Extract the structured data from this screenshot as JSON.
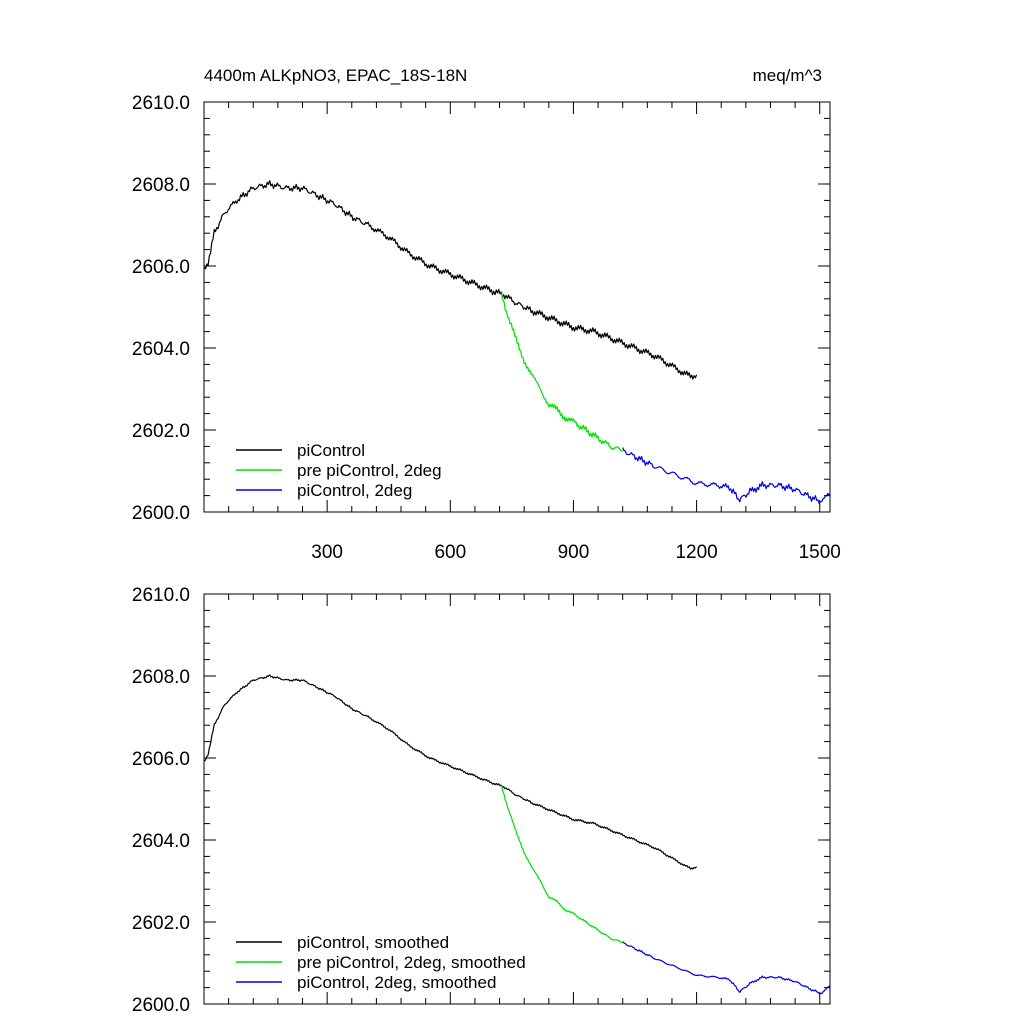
{
  "colors": {
    "piControl": "#000000",
    "pre_2deg": "#00e000",
    "piControl_2deg": "#0000e6"
  },
  "chart_data": [
    {
      "type": "line",
      "title": "4400m ALKpNO3, EPAC_18S-18N",
      "units": "meq/m^3",
      "xlim": [
        0,
        1525
      ],
      "ylim": [
        2600,
        2610
      ],
      "xticks": [
        300,
        600,
        900,
        1200,
        1500
      ],
      "xtick_labels": [
        "300",
        "600",
        "900",
        "1200",
        "1500"
      ],
      "yticks": [
        2600,
        2602,
        2604,
        2606,
        2608,
        2610
      ],
      "ytick_labels": [
        "2600.0",
        "2602.0",
        "2604.0",
        "2606.0",
        "2608.0",
        "2610.0"
      ],
      "legend": [
        "piControl",
        "pre piControl, 2deg",
        "piControl, 2deg"
      ],
      "series": [
        {
          "name": "piControl",
          "color_key": "piControl",
          "x": [
            1,
            10,
            25,
            50,
            80,
            120,
            160,
            200,
            240,
            280,
            320,
            360,
            400,
            450,
            500,
            550,
            600,
            650,
            700,
            730,
            760,
            800,
            850,
            900,
            950,
            1000,
            1050,
            1100,
            1150,
            1185,
            1200
          ],
          "y": [
            2605.9,
            2606.1,
            2606.8,
            2607.3,
            2607.6,
            2607.9,
            2608.0,
            2607.9,
            2607.9,
            2607.7,
            2607.5,
            2607.2,
            2607.0,
            2606.7,
            2606.3,
            2606.0,
            2605.8,
            2605.6,
            2605.4,
            2605.3,
            2605.1,
            2604.9,
            2604.7,
            2604.5,
            2604.4,
            2604.2,
            2604.0,
            2603.8,
            2603.5,
            2603.3,
            2603.35
          ]
        },
        {
          "name": "pre piControl, 2deg",
          "color_key": "pre_2deg",
          "x": [
            725,
            740,
            760,
            780,
            800,
            820,
            840,
            860,
            880,
            900,
            930,
            960,
            990,
            1020
          ],
          "y": [
            2605.3,
            2604.8,
            2604.2,
            2603.7,
            2603.3,
            2603.0,
            2602.6,
            2602.5,
            2602.3,
            2602.2,
            2602.0,
            2601.8,
            2601.6,
            2601.5
          ]
        },
        {
          "name": "piControl, 2deg",
          "color_key": "piControl_2deg",
          "x": [
            1020,
            1060,
            1100,
            1150,
            1200,
            1250,
            1280,
            1305,
            1330,
            1360,
            1400,
            1440,
            1480,
            1505,
            1525
          ],
          "y": [
            2601.5,
            2601.3,
            2601.1,
            2600.9,
            2600.7,
            2600.65,
            2600.6,
            2600.3,
            2600.5,
            2600.65,
            2600.65,
            2600.55,
            2600.35,
            2600.25,
            2600.45
          ]
        }
      ]
    },
    {
      "type": "line",
      "xlim": [
        0,
        1525
      ],
      "ylim": [
        2600,
        2610
      ],
      "xticks": [
        300,
        600,
        900,
        1200,
        1500
      ],
      "yticks": [
        2600,
        2602,
        2604,
        2606,
        2608,
        2610
      ],
      "ytick_labels": [
        "2600.0",
        "2602.0",
        "2604.0",
        "2606.0",
        "2608.0",
        "2610.0"
      ],
      "legend": [
        "piControl, smoothed",
        "pre piControl, 2deg, smoothed",
        "piControl, 2deg, smoothed"
      ],
      "series": [
        {
          "name": "piControl, smoothed",
          "color_key": "piControl",
          "x": [
            1,
            10,
            25,
            50,
            80,
            120,
            160,
            200,
            240,
            280,
            320,
            360,
            400,
            450,
            500,
            550,
            600,
            650,
            700,
            730,
            760,
            800,
            850,
            900,
            950,
            1000,
            1050,
            1100,
            1150,
            1185,
            1200
          ],
          "y": [
            2605.9,
            2606.1,
            2606.8,
            2607.3,
            2607.6,
            2607.9,
            2608.0,
            2607.9,
            2607.9,
            2607.7,
            2607.5,
            2607.2,
            2607.0,
            2606.7,
            2606.3,
            2606.0,
            2605.8,
            2605.6,
            2605.4,
            2605.3,
            2605.1,
            2604.9,
            2604.7,
            2604.5,
            2604.4,
            2604.2,
            2604.0,
            2603.8,
            2603.5,
            2603.3,
            2603.35
          ]
        },
        {
          "name": "pre piControl, 2deg, smoothed",
          "color_key": "pre_2deg",
          "x": [
            725,
            740,
            760,
            780,
            800,
            820,
            840,
            860,
            880,
            900,
            930,
            960,
            990,
            1020
          ],
          "y": [
            2605.3,
            2604.8,
            2604.2,
            2603.7,
            2603.3,
            2603.0,
            2602.6,
            2602.5,
            2602.3,
            2602.2,
            2602.0,
            2601.8,
            2601.6,
            2601.5
          ]
        },
        {
          "name": "piControl, 2deg, smoothed",
          "color_key": "piControl_2deg",
          "x": [
            1020,
            1060,
            1100,
            1150,
            1200,
            1250,
            1280,
            1305,
            1330,
            1360,
            1400,
            1440,
            1480,
            1505,
            1525
          ],
          "y": [
            2601.5,
            2601.3,
            2601.1,
            2600.9,
            2600.7,
            2600.65,
            2600.6,
            2600.3,
            2600.5,
            2600.65,
            2600.65,
            2600.55,
            2600.35,
            2600.25,
            2600.45
          ]
        }
      ]
    }
  ]
}
